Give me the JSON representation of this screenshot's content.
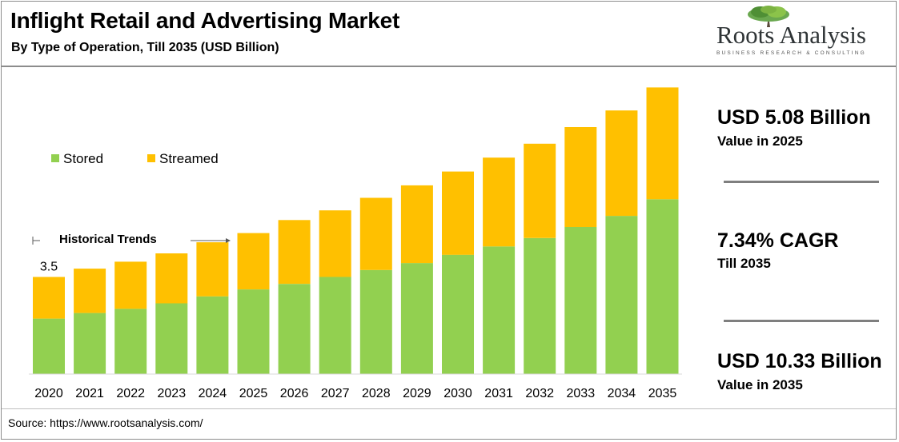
{
  "header": {
    "title": "Inflight Retail and Advertising Market",
    "subtitle": "By Type of Operation, Till 2035 (USD Billion)"
  },
  "logo": {
    "name": "Roots Analysis",
    "tagline": "BUSINESS RESEARCH & CONSULTING",
    "icon": "tree-icon"
  },
  "annotation": {
    "historical_label": "Historical Trends",
    "first_value_label": "3.5"
  },
  "kpis": [
    {
      "value": "USD 5.08 Billion",
      "label": "Value in 2025"
    },
    {
      "value": "7.34% CAGR",
      "label": "Till 2035"
    },
    {
      "value": "USD 10.33 Billion",
      "label": "Value in 2035"
    }
  ],
  "source": "Source: https://www.rootsanalysis.com/",
  "colors": {
    "stored": "#92d050",
    "streamed": "#ffc000",
    "text": "#000000"
  },
  "chart_data": {
    "type": "bar",
    "stacked": true,
    "categories": [
      "2020",
      "2021",
      "2022",
      "2023",
      "2024",
      "2025",
      "2026",
      "2027",
      "2028",
      "2029",
      "2030",
      "2031",
      "2032",
      "2033",
      "2034",
      "2035"
    ],
    "series": [
      {
        "name": "Stored",
        "color": "#92d050",
        "values": [
          2.0,
          2.2,
          2.35,
          2.55,
          2.8,
          3.05,
          3.25,
          3.5,
          3.75,
          4.0,
          4.3,
          4.6,
          4.9,
          5.3,
          5.7,
          6.3
        ]
      },
      {
        "name": "Streamed",
        "color": "#ffc000",
        "values": [
          1.5,
          1.6,
          1.7,
          1.8,
          1.95,
          2.03,
          2.3,
          2.4,
          2.6,
          2.8,
          3.0,
          3.2,
          3.4,
          3.6,
          3.8,
          4.03
        ]
      }
    ],
    "totals_labeled": {
      "2020": "3.5"
    },
    "legend": "top-left",
    "grid": false,
    "ylim": [
      0,
      10.6
    ]
  }
}
